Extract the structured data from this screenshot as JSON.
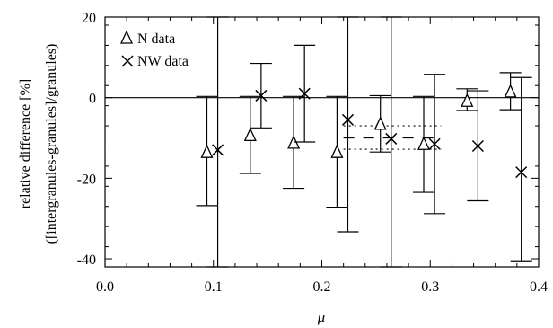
{
  "chart_data": {
    "type": "scatter",
    "xlabel": "μ",
    "ylabel_line1": "relative difference [%]",
    "ylabel_line2": "([intergranules-granules]/granules)",
    "xlim": [
      0.0,
      0.4
    ],
    "ylim": [
      -42,
      20
    ],
    "x_ticks": [
      0.0,
      0.1,
      0.2,
      0.3,
      0.4
    ],
    "x_tick_labels": [
      "0.0",
      "0.1",
      "0.2",
      "0.3",
      "0.4"
    ],
    "y_ticks": [
      20,
      0,
      -20,
      -40
    ],
    "y_tick_labels": [
      "20",
      "0",
      "-20",
      "-40"
    ],
    "grid": false,
    "legend_position": "top-left",
    "series": [
      {
        "name": "N data",
        "marker": "triangle",
        "points": [
          {
            "x": 0.094,
            "y": -13.5,
            "err_low": -26.8,
            "err_high": 0.3
          },
          {
            "x": 0.134,
            "y": -9.3,
            "err_low": -18.8,
            "err_high": 0.3
          },
          {
            "x": 0.174,
            "y": -11.2,
            "err_low": -22.5,
            "err_high": 0.3
          },
          {
            "x": 0.214,
            "y": -13.5,
            "err_low": -27.2,
            "err_high": 0.3
          },
          {
            "x": 0.254,
            "y": -6.5,
            "err_low": -13.5,
            "err_high": 0.5
          },
          {
            "x": 0.294,
            "y": -11.5,
            "err_low": -23.5,
            "err_high": 0.3
          },
          {
            "x": 0.334,
            "y": -0.8,
            "err_low": -3.2,
            "err_high": 2.2
          },
          {
            "x": 0.374,
            "y": 1.5,
            "err_low": -3.0,
            "err_high": 6.2
          }
        ]
      },
      {
        "name": "NW data",
        "marker": "x",
        "points": [
          {
            "x": 0.104,
            "y": -13.0,
            "err_low": -42,
            "err_high": 20
          },
          {
            "x": 0.144,
            "y": 0.5,
            "err_low": -7.5,
            "err_high": 8.5
          },
          {
            "x": 0.184,
            "y": 1.0,
            "err_low": -11.0,
            "err_high": 13.0
          },
          {
            "x": 0.224,
            "y": -5.5,
            "err_low": -33.3,
            "err_high": 20
          },
          {
            "x": 0.264,
            "y": -10.2,
            "err_low": -42,
            "err_high": 20
          },
          {
            "x": 0.304,
            "y": -11.5,
            "err_low": -28.8,
            "err_high": 5.8
          },
          {
            "x": 0.344,
            "y": -12.0,
            "err_low": -25.6,
            "err_high": 1.7
          },
          {
            "x": 0.384,
            "y": -18.5,
            "err_low": -40.5,
            "err_high": 5.0
          }
        ]
      }
    ],
    "hlines_dashed": [
      {
        "x0": 0.22,
        "x1": 0.31,
        "y": -10.0
      },
      {
        "x0": 0.22,
        "x1": 0.31,
        "y": -7.0,
        "dotted": true
      },
      {
        "x0": 0.22,
        "x1": 0.31,
        "y": -12.8,
        "dotted": true
      }
    ]
  }
}
